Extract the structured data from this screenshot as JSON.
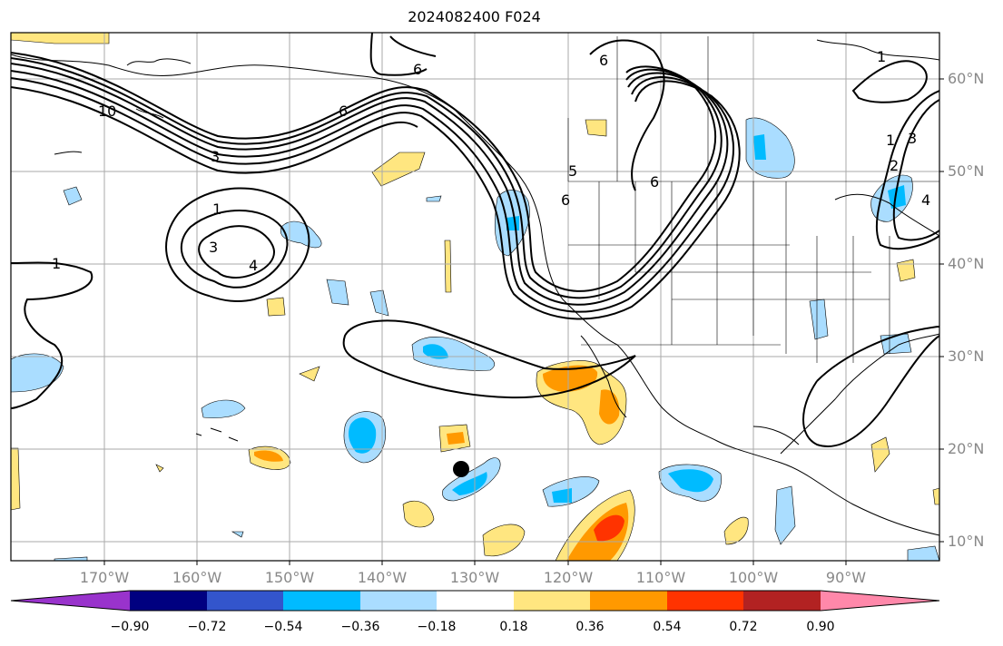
{
  "title": "2024082400 F024",
  "lat_labels": [
    "60°N",
    "50°N",
    "40°N",
    "30°N",
    "20°N",
    "10°N"
  ],
  "lon_labels": [
    "170°W",
    "160°W",
    "150°W",
    "140°W",
    "130°W",
    "120°W",
    "110°W",
    "100°W",
    "90°W"
  ],
  "colorbar": {
    "colors": [
      "#9933cc",
      "#000080",
      "#3355cc",
      "#00bbff",
      "#aaddff",
      "#ffffff",
      "#ffe680",
      "#ff9900",
      "#ff3300",
      "#b22222",
      "#ff88aa"
    ],
    "labels": [
      "−0.90",
      "−0.72",
      "−0.54",
      "−0.36",
      "−0.18",
      "0.18",
      "0.36",
      "0.54",
      "0.72",
      "0.90"
    ]
  },
  "contour_labels": [
    "6",
    "6",
    "6",
    "6",
    "6",
    "5",
    "4",
    "4",
    "3",
    "3",
    "3",
    "2",
    "1",
    "1",
    "1",
    "1",
    "10"
  ],
  "colors": {
    "positive_light": "#ffe680",
    "positive_mid": "#ff9900",
    "positive_strong": "#ff3300",
    "negative_light": "#aaddff",
    "negative_mid": "#00bbff",
    "contour": "#000000",
    "grid": "#aaaaaa"
  }
}
